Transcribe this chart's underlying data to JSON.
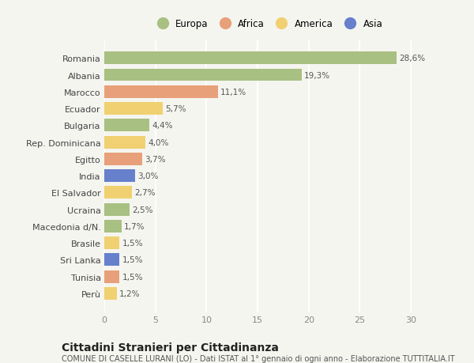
{
  "categories": [
    "Romania",
    "Albania",
    "Marocco",
    "Ecuador",
    "Bulgaria",
    "Rep. Dominicana",
    "Egitto",
    "India",
    "El Salvador",
    "Ucraina",
    "Macedonia d/N.",
    "Brasile",
    "Sri Lanka",
    "Tunisia",
    "Perù"
  ],
  "values": [
    28.6,
    19.3,
    11.1,
    5.7,
    4.4,
    4.0,
    3.7,
    3.0,
    2.7,
    2.5,
    1.7,
    1.5,
    1.5,
    1.5,
    1.2
  ],
  "labels": [
    "28,6%",
    "19,3%",
    "11,1%",
    "5,7%",
    "4,4%",
    "4,0%",
    "3,7%",
    "3,0%",
    "2,7%",
    "2,5%",
    "1,7%",
    "1,5%",
    "1,5%",
    "1,5%",
    "1,2%"
  ],
  "continents": [
    "Europa",
    "Europa",
    "Africa",
    "America",
    "Europa",
    "America",
    "Africa",
    "Asia",
    "America",
    "Europa",
    "Europa",
    "America",
    "Asia",
    "Africa",
    "America"
  ],
  "continent_colors": {
    "Europa": "#a8c082",
    "Africa": "#e8a07a",
    "America": "#f0d070",
    "Asia": "#6680cc"
  },
  "legend_items": [
    "Europa",
    "Africa",
    "America",
    "Asia"
  ],
  "legend_colors": [
    "#a8c082",
    "#e8a07a",
    "#f0d070",
    "#6680cc"
  ],
  "xlim": [
    0,
    32
  ],
  "xticks": [
    0,
    5,
    10,
    15,
    20,
    25,
    30
  ],
  "title": "Cittadini Stranieri per Cittadinanza",
  "subtitle": "COMUNE DI CASELLE LURANI (LO) - Dati ISTAT al 1° gennaio di ogni anno - Elaborazione TUTTITALIA.IT",
  "background_color": "#f5f5f0",
  "grid_color": "#ffffff",
  "bar_height": 0.75,
  "label_fontsize": 7.5,
  "ytick_fontsize": 8.0,
  "xtick_fontsize": 8.0,
  "title_fontsize": 10,
  "subtitle_fontsize": 7.0
}
